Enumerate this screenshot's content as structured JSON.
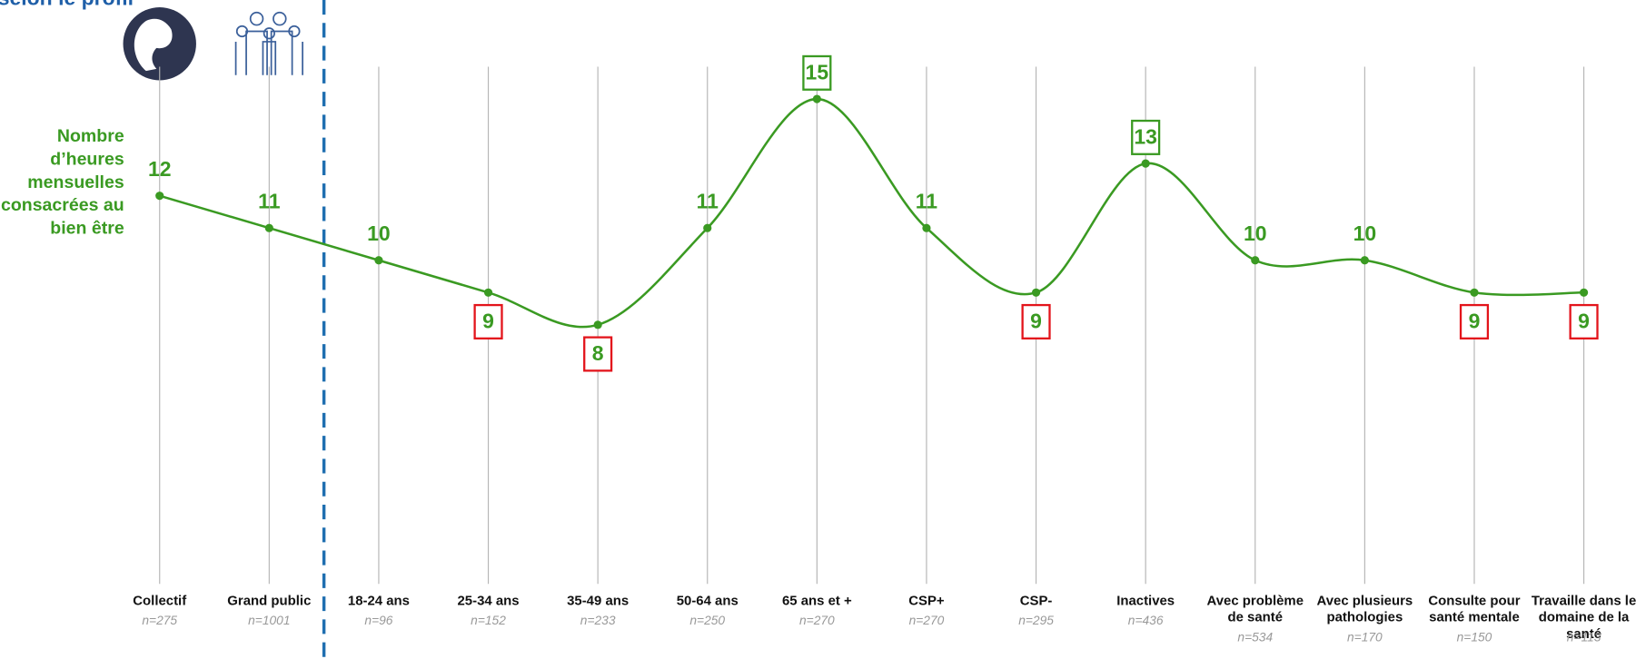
{
  "chart_data": {
    "type": "line",
    "title": "selon le profil",
    "y_label": "Nombre d’heures mensuelles consacrées au bien être",
    "categories": [
      "Collectif",
      "Grand public",
      "18-24 ans",
      "25-34 ans",
      "35-49 ans",
      "50-64 ans",
      "65 ans et +",
      "CSP+",
      "CSP-",
      "Inactives",
      "Avec problème de santé",
      "Avec plusieurs pathologies",
      "Consulte pour santé mentale",
      "Travaille dans le domaine de la santé"
    ],
    "sample_sizes": [
      "n=275",
      "n=1001",
      "n=96",
      "n=152",
      "n=233",
      "n=250",
      "n=270",
      "n=270",
      "n=295",
      "n=436",
      "n=534",
      "n=170",
      "n=150",
      "n=113"
    ],
    "series": [
      {
        "name": "Nombre d’heures mensuelles consacrées au bien être",
        "color": "#3a9a22",
        "values": [
          12,
          11,
          10,
          9,
          8,
          11,
          15,
          11,
          9,
          13,
          10,
          10,
          9,
          9
        ]
      }
    ],
    "label_box_colors": [
      null,
      null,
      null,
      "#e3141b",
      "#e3141b",
      null,
      "#3a9a22",
      null,
      "#e3141b",
      "#3a9a22",
      null,
      null,
      "#e3141b",
      "#e3141b"
    ],
    "ylim": [
      0,
      16
    ],
    "divider_after_index": 1,
    "divider_color": "#1f6fb0"
  }
}
